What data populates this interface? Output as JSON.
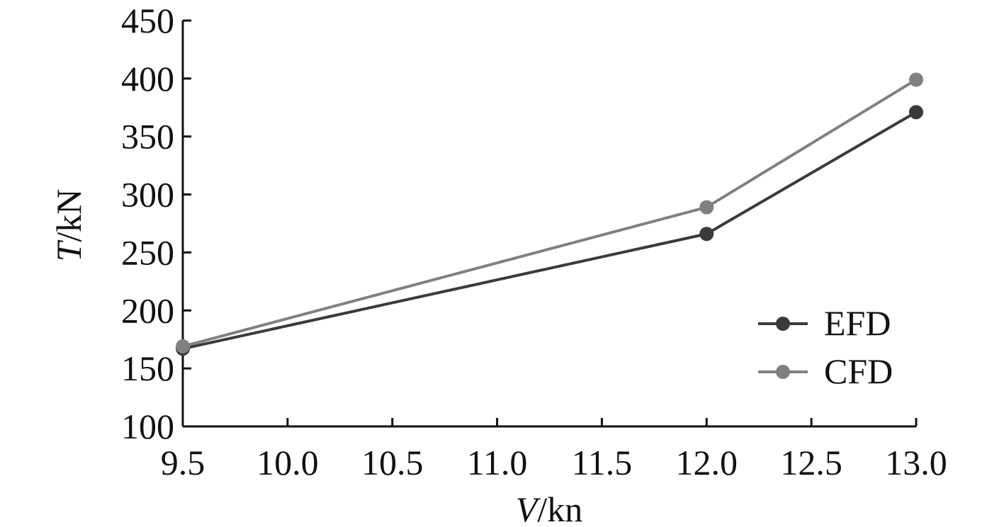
{
  "chart_data": {
    "type": "line",
    "x": [
      9.5,
      12.0,
      13.0
    ],
    "series": [
      {
        "name": "EFD",
        "values": [
          167,
          266,
          371
        ],
        "color": "#3a3a3a"
      },
      {
        "name": "CFD",
        "values": [
          169,
          289,
          399
        ],
        "color": "#808080"
      }
    ],
    "xlabel_var": "V",
    "xlabel_unit": "/kn",
    "ylabel_var": "T",
    "ylabel_unit": "/kN",
    "xlim": [
      9.5,
      13.0
    ],
    "ylim": [
      100,
      450
    ],
    "xticks": [
      9.5,
      10.0,
      10.5,
      11.0,
      11.5,
      12.0,
      12.5,
      13.0
    ],
    "xtick_labels": [
      "9.5",
      "10.0",
      "10.5",
      "11.0",
      "11.5",
      "12.0",
      "12.5",
      "13.0"
    ],
    "yticks": [
      100,
      150,
      200,
      250,
      300,
      350,
      400,
      450
    ],
    "ytick_labels": [
      "100",
      "150",
      "200",
      "250",
      "300",
      "350",
      "400",
      "450"
    ],
    "grid": false,
    "legend_position": "bottom-right"
  }
}
